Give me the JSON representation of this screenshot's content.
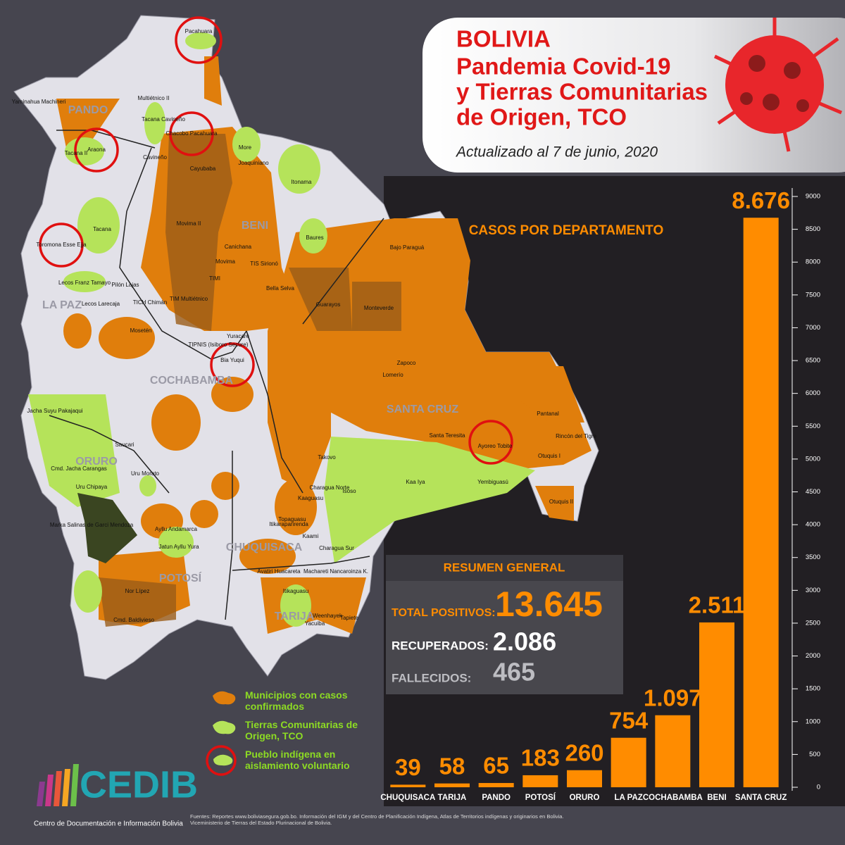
{
  "header": {
    "title_lines": [
      "BOLIVIA",
      "Pandemia Covid-19",
      "y Tierras Comunitarias",
      "de Origen, TCO"
    ],
    "subtitle": "Actualizado al 7 de junio, 2020"
  },
  "chart_data": {
    "type": "bar",
    "title": "CASOS POR DEPARTAMENTO",
    "categories": [
      "CHUQUISACA",
      "TARIJA",
      "PANDO",
      "POTOSÍ",
      "ORURO",
      "LA PAZ",
      "COCHABAMBA",
      "BENI",
      "SANTA CRUZ"
    ],
    "values": [
      39,
      58,
      65,
      183,
      260,
      754,
      1097,
      2511,
      8676
    ],
    "value_labels": [
      "39",
      "58",
      "65",
      "183",
      "260",
      "754",
      "1.097",
      "2.511",
      "8.676"
    ],
    "color": "#ff8c00",
    "ylim": [
      0,
      9000
    ],
    "yticks": [
      0,
      500,
      1000,
      1500,
      2000,
      2500,
      3000,
      3500,
      4000,
      4500,
      5000,
      5500,
      6000,
      6500,
      7000,
      7500,
      8000,
      8500,
      9000
    ]
  },
  "summary": {
    "title": "RESUMEN GENERAL",
    "rows": [
      [
        "TOTAL POSITIVOS:",
        "13.645"
      ],
      [
        "RECUPERADOS:",
        "2.086"
      ],
      [
        "FALLECIDOS:",
        "465"
      ]
    ]
  },
  "map": {
    "departments": [
      "PANDO",
      "BENI",
      "LA PAZ",
      "COCHABAMBA",
      "SANTA CRUZ",
      "ORURO",
      "POTOSÍ",
      "CHUQUISACA",
      "TARIJA"
    ],
    "labels": [
      "Pacahuara",
      "Yaminahua Machineri",
      "Multiétnico II",
      "Tacana Cavineño",
      "Chacobo Pacahuara",
      "More",
      "Joaquiniano",
      "Tacana II",
      "Araona",
      "Cavineño",
      "Itonama",
      "Cayubaba",
      "Toromona Esse Ejja",
      "Tacana",
      "Movima II",
      "Baures",
      "Canichana",
      "Movima",
      "TIS Sirionó",
      "Bajo Paraguá",
      "TIMI",
      "Bella Selva",
      "Guarayos",
      "Monteverde",
      "Lecos Franz Tamayo",
      "Pilón Lajas",
      "Lecos Larecaja",
      "TICH Chimán",
      "TIM Multiétnico",
      "Mosetén",
      "TIPNIS (Isiboro Secure)",
      "Yuracaré",
      "Bia Yuqui",
      "Zapoco",
      "Lomerío",
      "Pantanal",
      "Jacha Suyu Pakajaqui",
      "Saucari",
      "Santa Teresita",
      "Ayoreo Tobite",
      "Rincón del Tigre",
      "Otuquis I",
      "Cmd. Jacha Carangas",
      "Uru Morato",
      "Takovo",
      "Charagua Norte",
      "Kaa Iya",
      "Yembiguasú",
      "Uru Chipaya",
      "Isoso",
      "Kaaguasu",
      "Topaguasu",
      "Otuquis II",
      "Marka Salinas de Garci Mendoza",
      "Ayllu Andamarca",
      "Itikaraparirenda",
      "Kaami",
      "Jatun Ayllu Yura",
      "Charagua Sur",
      "Avatiri Huacareta",
      "Machareti Nancaroinza K.",
      "Nor Lípez",
      "Itikaguasu",
      "Cmd. Baldivieso",
      "Weenhayek",
      "Tapiete",
      "Yacuiba"
    ]
  },
  "legend": [
    "Municipios con casos confirmados",
    "Tierras Comunitarias de Origen, TCO",
    "Pueblo indígena en aislamiento voluntario"
  ],
  "logo": {
    "name": "CEDIB",
    "subtitle": "Centro de Documentación e Información Bolivia"
  },
  "sources": [
    "Fuentes: Reportes www.boliviasegura.gob.bo. Información del IGM y del Centro de Planificación Indígena, Atlas de Territorios indígenas y originarios en Bolivia.",
    "Viceministerio de Tierras del Estado Plurinacional de Bolivia."
  ]
}
